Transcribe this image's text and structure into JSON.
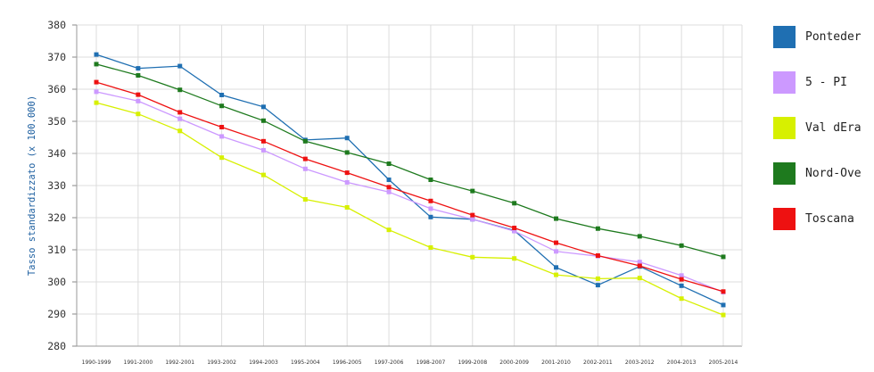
{
  "chart_data": {
    "type": "line",
    "ylabel": "Tasso standardizzato (x 100.000)",
    "xlabel": "",
    "ylim": [
      280,
      380
    ],
    "yticks": [
      280,
      290,
      300,
      310,
      320,
      330,
      340,
      350,
      360,
      370,
      380
    ],
    "grid": true,
    "legend_position": "right",
    "categories": [
      "1990-1999",
      "1991-2000",
      "1992-2001",
      "1993-2002",
      "1994-2003",
      "1995-2004",
      "1996-2005",
      "1997-2006",
      "1998-2007",
      "1999-2008",
      "2000-2009",
      "2001-2010",
      "2002-2011",
      "2003-2012",
      "2004-2013",
      "2005-2014"
    ],
    "series": [
      {
        "name": "Ponteder",
        "color": "#1f6fb2",
        "values": [
          370.8,
          366.5,
          367.2,
          358.2,
          354.5,
          344.2,
          344.8,
          331.8,
          320.2,
          319.5,
          316.0,
          304.5,
          299.0,
          304.8,
          298.8,
          292.8
        ]
      },
      {
        "name": "5 - PI",
        "color": "#cc99ff",
        "values": [
          359.2,
          356.3,
          350.8,
          345.3,
          341.0,
          335.2,
          331.0,
          328.0,
          322.8,
          319.5,
          315.8,
          309.5,
          308.0,
          306.2,
          302.0,
          296.8
        ]
      },
      {
        "name": "Val dEra",
        "color": "#d7f000",
        "values": [
          355.8,
          352.3,
          347.0,
          338.7,
          333.3,
          325.7,
          323.2,
          316.2,
          310.7,
          307.7,
          307.3,
          302.2,
          301.0,
          301.2,
          294.8,
          289.7
        ]
      },
      {
        "name": "Nord-Ove",
        "color": "#1e7a1e",
        "values": [
          367.8,
          364.3,
          359.8,
          354.8,
          350.2,
          343.8,
          340.3,
          336.8,
          331.8,
          328.3,
          324.5,
          319.7,
          316.6,
          314.2,
          311.3,
          307.8
        ]
      },
      {
        "name": "Toscana",
        "color": "#ee1111",
        "values": [
          362.2,
          358.3,
          352.8,
          348.2,
          343.8,
          338.3,
          334.0,
          329.5,
          325.2,
          320.8,
          316.8,
          312.2,
          308.2,
          305.0,
          300.8,
          297.0
        ]
      }
    ]
  }
}
